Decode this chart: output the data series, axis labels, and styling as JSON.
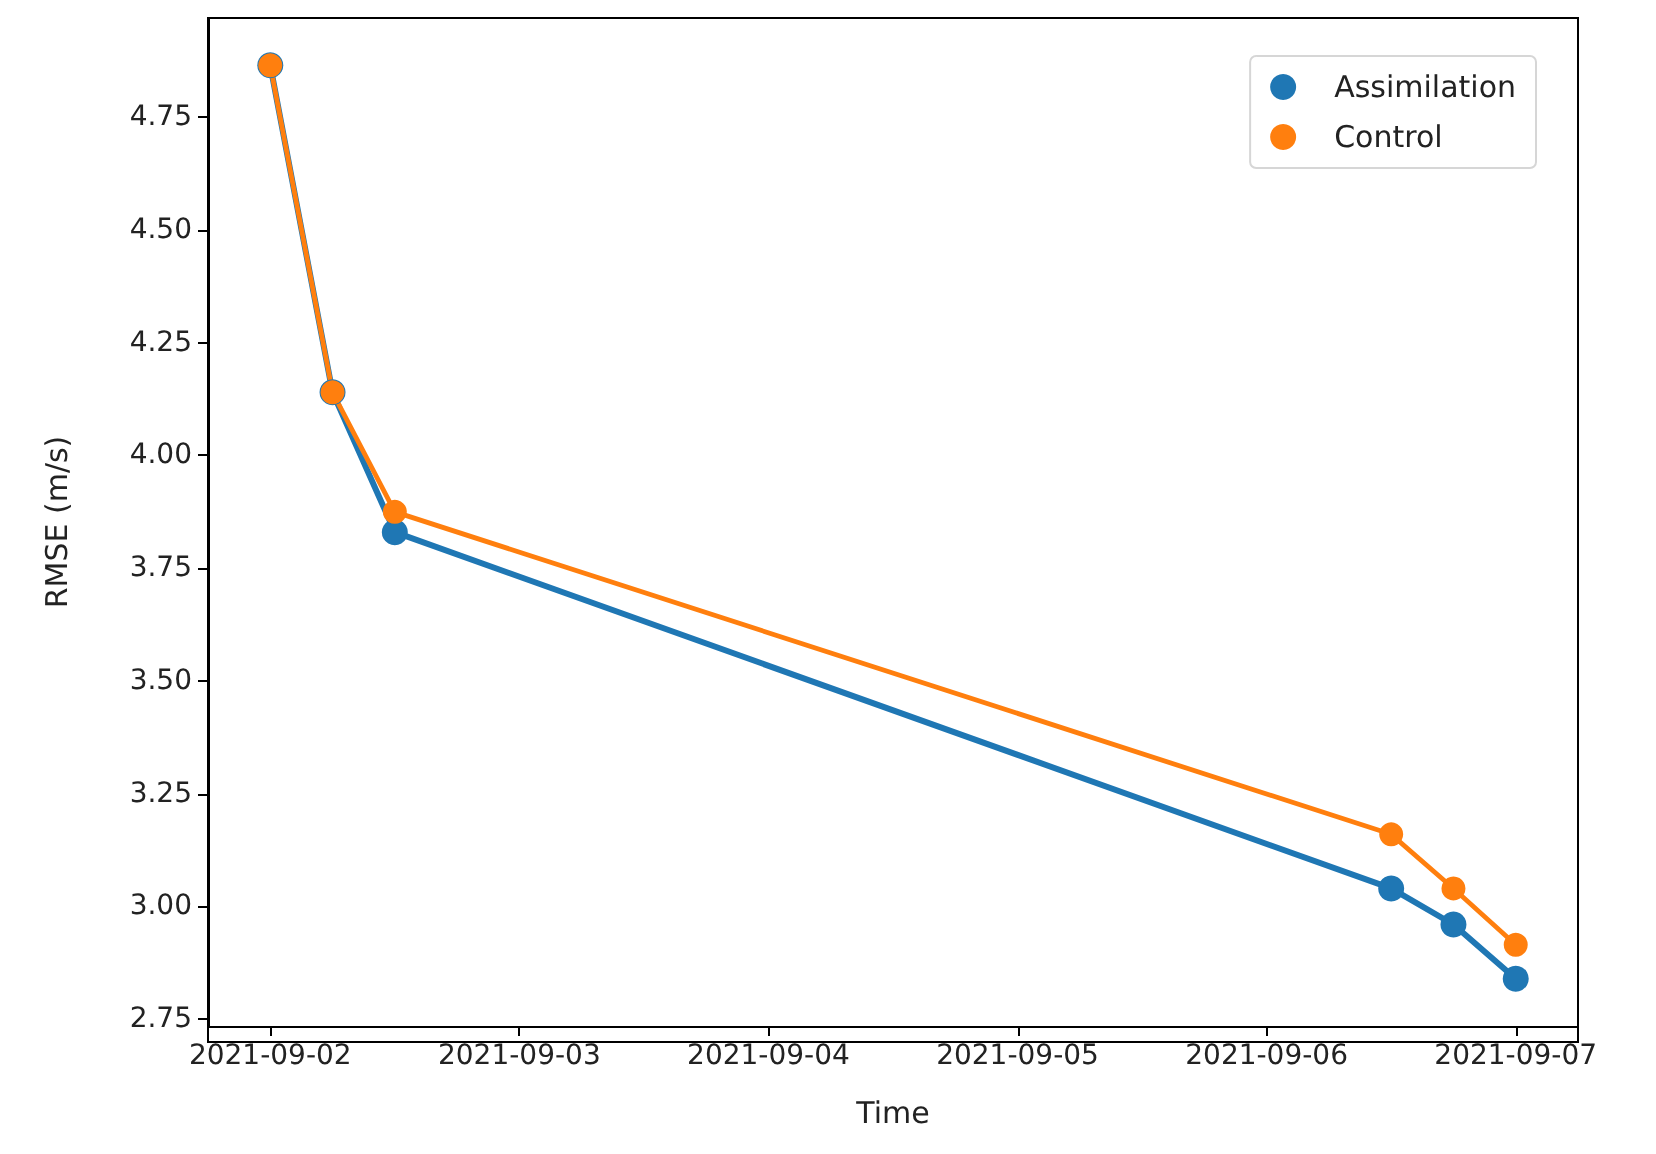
{
  "chart_data": {
    "type": "line",
    "xlabel": "Time",
    "ylabel": "RMSE (m/s)",
    "x": [
      "2021-09-02",
      "2021-09-02T06:00",
      "2021-09-02T12:00",
      "2021-09-06T12:00",
      "2021-09-06T18:00",
      "2021-09-07"
    ],
    "series": [
      {
        "name": "Assimilation",
        "color": "#1f77b4",
        "values": [
          4.865,
          4.14,
          3.83,
          3.04,
          2.96,
          2.84
        ]
      },
      {
        "name": "Control",
        "color": "#ff7f0e",
        "values": [
          4.865,
          4.14,
          3.875,
          3.16,
          3.04,
          2.915
        ]
      }
    ],
    "xlim": [
      "2021-09-01T18:00",
      "2021-09-07T06:00"
    ],
    "xticks": [
      "2021-09-02",
      "2021-09-03",
      "2021-09-04",
      "2021-09-05",
      "2021-09-06",
      "2021-09-07"
    ],
    "ylim": [
      2.735,
      4.97
    ],
    "yticks": [
      2.75,
      {
        "value": 3,
        "label": "3.00"
      },
      3.25,
      {
        "value": 3.5,
        "label": "3.50"
      },
      3.75,
      {
        "value": 4,
        "label": "4.00"
      },
      4.25,
      {
        "value": 4.5,
        "label": "4.50"
      },
      4.75
    ],
    "grid": false,
    "legend": "top right",
    "marker": "circle",
    "line_style": "solid"
  }
}
